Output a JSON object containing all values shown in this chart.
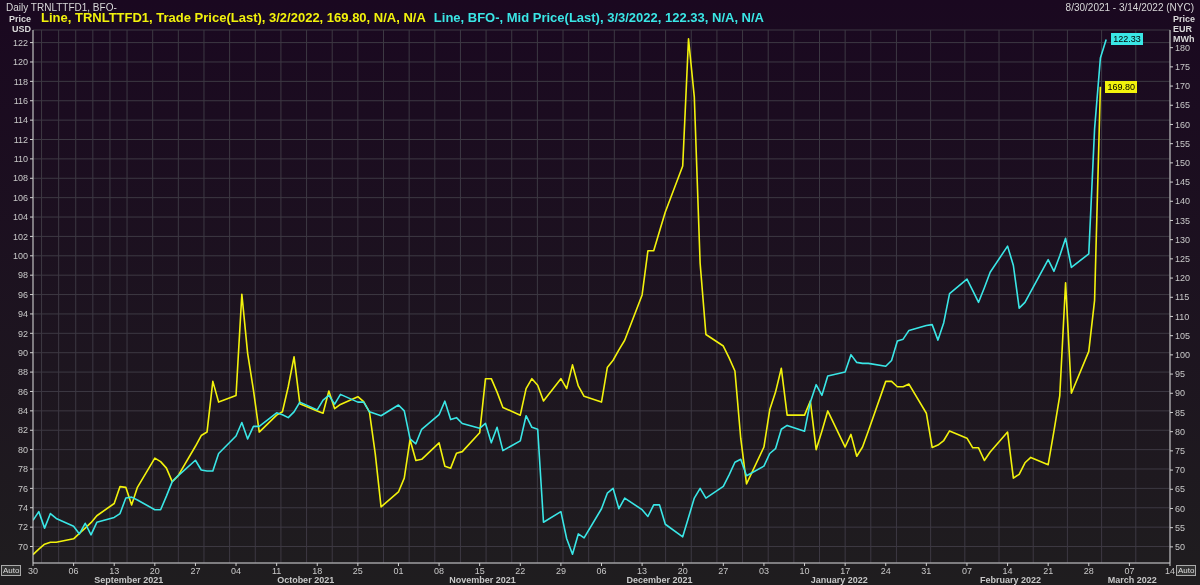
{
  "chart_data": {
    "type": "line",
    "title": "Daily TRNLTTFD1, BFO-",
    "subtitle": "8/30/2021 - 3/14/2022 (NYC)",
    "ylabel": "Price USD",
    "y2label": "Price EUR MWh",
    "x": [
      "2021-08-30",
      "2021-08-31",
      "2021-09-01",
      "2021-09-02",
      "2021-09-03",
      "2021-09-06",
      "2021-09-07",
      "2021-09-08",
      "2021-09-09",
      "2021-09-10",
      "2021-09-13",
      "2021-09-14",
      "2021-09-15",
      "2021-09-16",
      "2021-09-17",
      "2021-09-20",
      "2021-09-21",
      "2021-09-22",
      "2021-09-23",
      "2021-09-24",
      "2021-09-27",
      "2021-09-28",
      "2021-09-29",
      "2021-09-30",
      "2021-10-01",
      "2021-10-04",
      "2021-10-05",
      "2021-10-06",
      "2021-10-07",
      "2021-10-08",
      "2021-10-11",
      "2021-10-12",
      "2021-10-13",
      "2021-10-14",
      "2021-10-15",
      "2021-10-18",
      "2021-10-19",
      "2021-10-20",
      "2021-10-21",
      "2021-10-22",
      "2021-10-25",
      "2021-10-26",
      "2021-10-27",
      "2021-10-28",
      "2021-10-29",
      "2021-11-01",
      "2021-11-02",
      "2021-11-03",
      "2021-11-04",
      "2021-11-05",
      "2021-11-08",
      "2021-11-09",
      "2021-11-10",
      "2021-11-11",
      "2021-11-12",
      "2021-11-15",
      "2021-11-16",
      "2021-11-17",
      "2021-11-18",
      "2021-11-19",
      "2021-11-22",
      "2021-11-23",
      "2021-11-24",
      "2021-11-25",
      "2021-11-26",
      "2021-11-29",
      "2021-11-30",
      "2021-12-01",
      "2021-12-02",
      "2021-12-03",
      "2021-12-06",
      "2021-12-07",
      "2021-12-08",
      "2021-12-09",
      "2021-12-10",
      "2021-12-13",
      "2021-12-14",
      "2021-12-15",
      "2021-12-16",
      "2021-12-17",
      "2021-12-20",
      "2021-12-21",
      "2021-12-22",
      "2021-12-23",
      "2021-12-24",
      "2021-12-27",
      "2021-12-28",
      "2021-12-29",
      "2021-12-30",
      "2021-12-31",
      "2022-01-03",
      "2022-01-04",
      "2022-01-05",
      "2022-01-06",
      "2022-01-07",
      "2022-01-10",
      "2022-01-11",
      "2022-01-12",
      "2022-01-13",
      "2022-01-14",
      "2022-01-17",
      "2022-01-18",
      "2022-01-19",
      "2022-01-20",
      "2022-01-21",
      "2022-01-24",
      "2022-01-25",
      "2022-01-26",
      "2022-01-27",
      "2022-01-28",
      "2022-01-31",
      "2022-02-01",
      "2022-02-02",
      "2022-02-03",
      "2022-02-04",
      "2022-02-07",
      "2022-02-08",
      "2022-02-09",
      "2022-02-10",
      "2022-02-11",
      "2022-02-14",
      "2022-02-15",
      "2022-02-16",
      "2022-02-17",
      "2022-02-18",
      "2022-02-21",
      "2022-02-22",
      "2022-02-23",
      "2022-02-24",
      "2022-02-25",
      "2022-02-28",
      "2022-03-01",
      "2022-03-02",
      "2022-03-03"
    ],
    "series": [
      {
        "name": "Line, TRNLTTFD1, Trade Price(Last), 3/2/2022, 169.80, N/A, N/A",
        "color": "#f2f20c",
        "axis": "y2",
        "values": [
          48.0,
          49.4,
          50.7,
          51.2,
          51.2,
          52.1,
          53.5,
          54.9,
          56.3,
          58.1,
          61.3,
          65.7,
          65.5,
          60.9,
          65.5,
          73.1,
          72.2,
          70.5,
          67.0,
          68.5,
          76.2,
          79.0,
          79.9,
          93.1,
          87.7,
          89.4,
          115.8,
          100.4,
          90.8,
          79.9,
          84.3,
          85.2,
          91.7,
          99.5,
          87.3,
          85.4,
          84.8,
          90.6,
          86.0,
          87.1,
          89.1,
          87.8,
          85.1,
          74.2,
          60.4,
          64.3,
          67.9,
          77.9,
          72.5,
          72.8,
          77.1,
          71.0,
          70.5,
          74.4,
          74.8,
          79.7,
          93.8,
          93.8,
          90.3,
          86.3,
          84.3,
          91.2,
          93.8,
          92.1,
          88.0,
          93.8,
          91.2,
          97.4,
          91.9,
          89.2,
          87.7,
          96.7,
          98.6,
          101.3,
          103.8,
          115.6,
          127.1,
          127.1,
          132.2,
          137.2,
          149.2,
          182.3,
          167.1,
          123.9,
          105.3,
          102.3,
          99.2,
          95.8,
          78.3,
          66.4,
          76.0,
          85.7,
          90.3,
          96.5,
          84.3,
          84.3,
          88.0,
          75.3,
          80.2,
          85.4,
          76.0,
          79.3,
          73.6,
          76.0,
          80.2,
          93.1,
          93.1,
          91.7,
          91.7,
          92.4,
          84.8,
          75.9,
          76.5,
          77.7,
          80.2,
          78.3,
          75.8,
          75.8,
          72.5,
          74.7,
          79.9,
          67.9,
          68.9,
          71.9,
          73.3,
          71.4,
          80.2,
          89.4,
          118.8,
          90.0,
          100.9,
          114.2,
          169.8,
          null
        ],
        "value_labels": [
          null,
          null,
          null,
          null,
          null,
          null,
          null,
          null,
          null,
          null,
          null,
          null,
          null,
          null,
          null,
          null,
          null,
          null,
          null,
          null,
          null,
          null,
          null,
          null,
          null,
          null,
          null,
          null,
          null,
          null,
          null,
          null,
          null,
          null,
          null,
          null,
          null,
          null,
          null,
          null,
          null,
          null,
          null,
          null,
          null,
          null,
          null,
          null,
          null,
          null,
          null,
          null,
          null,
          null,
          null,
          null,
          null,
          null,
          null,
          null,
          null,
          null,
          null,
          null,
          null,
          null,
          null,
          null,
          null,
          null,
          null,
          null,
          null,
          null,
          null,
          null,
          null,
          null,
          null,
          null,
          null,
          null,
          null,
          null,
          null,
          null,
          null,
          null,
          null,
          null,
          null,
          null,
          null,
          null,
          null,
          null,
          null,
          null,
          null,
          null,
          null,
          null,
          null,
          null,
          null,
          null,
          null,
          null,
          null,
          null,
          null,
          null,
          null,
          null,
          null,
          null,
          null,
          null,
          null,
          null,
          null,
          null,
          null,
          null,
          null,
          null,
          null,
          null,
          null,
          null,
          null,
          null,
          "169.80",
          null
        ]
      },
      {
        "name": "Line, BFO-, Mid Price(Last), 3/3/2022, 122.33, N/A, N/A",
        "color": "#3ae6e6",
        "axis": "y",
        "values": [
          72.7,
          73.6,
          71.9,
          73.4,
          72.9,
          72.1,
          71.3,
          72.4,
          71.2,
          72.5,
          73.0,
          73.4,
          75.0,
          75.1,
          74.8,
          73.8,
          73.8,
          75.2,
          76.7,
          77.3,
          78.9,
          77.9,
          77.8,
          77.8,
          79.6,
          81.4,
          82.8,
          81.1,
          82.4,
          82.4,
          83.8,
          83.6,
          83.3,
          83.9,
          84.9,
          84.1,
          85.1,
          85.6,
          84.7,
          85.7,
          84.9,
          84.9,
          83.9,
          83.7,
          83.5,
          84.6,
          84.0,
          81.1,
          80.6,
          82.1,
          83.6,
          85.0,
          83.1,
          83.3,
          82.7,
          82.2,
          82.7,
          80.7,
          82.3,
          79.9,
          80.9,
          83.5,
          82.3,
          82.1,
          72.5,
          73.6,
          70.8,
          69.2,
          71.3,
          70.9,
          73.9,
          75.5,
          76.0,
          73.9,
          75.0,
          73.8,
          73.1,
          74.3,
          74.3,
          72.3,
          71.0,
          73.0,
          75.0,
          76.0,
          75.0,
          76.2,
          77.4,
          78.7,
          79.0,
          77.3,
          78.3,
          79.6,
          80.1,
          82.1,
          82.5,
          81.9,
          84.9,
          86.7,
          85.6,
          87.6,
          88.0,
          89.8,
          89.0,
          88.9,
          88.9,
          88.6,
          89.2,
          91.2,
          91.4,
          92.3,
          92.8,
          92.9,
          91.3,
          93.1,
          96.1,
          97.6,
          96.4,
          95.2,
          96.7,
          98.3,
          101.0,
          99.0,
          94.6,
          95.2,
          96.3,
          99.6,
          98.4,
          100.0,
          101.8,
          98.8,
          100.2,
          113.1,
          120.4,
          122.33
        ],
        "value_labels": [
          null,
          null,
          null,
          null,
          null,
          null,
          null,
          null,
          null,
          null,
          null,
          null,
          null,
          null,
          null,
          null,
          null,
          null,
          null,
          null,
          null,
          null,
          null,
          null,
          null,
          null,
          null,
          null,
          null,
          null,
          null,
          null,
          null,
          null,
          null,
          null,
          null,
          null,
          null,
          null,
          null,
          null,
          null,
          null,
          null,
          null,
          null,
          null,
          null,
          null,
          null,
          null,
          null,
          null,
          null,
          null,
          null,
          null,
          null,
          null,
          null,
          null,
          null,
          null,
          null,
          null,
          null,
          null,
          null,
          null,
          null,
          null,
          null,
          null,
          null,
          null,
          null,
          null,
          null,
          null,
          null,
          null,
          null,
          null,
          null,
          null,
          null,
          null,
          null,
          null,
          null,
          null,
          null,
          null,
          null,
          null,
          null,
          null,
          null,
          null,
          null,
          null,
          null,
          null,
          null,
          null,
          null,
          null,
          null,
          null,
          null,
          null,
          null,
          null,
          null,
          null,
          null,
          null,
          null,
          null,
          null,
          null,
          null,
          null,
          null,
          null,
          null,
          null,
          null,
          null,
          null,
          null,
          null,
          "122.33"
        ]
      }
    ],
    "xlim": [
      "2021-08-30",
      "2022-03-14"
    ],
    "xticks": [
      {
        "value": "2021-08-30",
        "label": "30"
      },
      {
        "value": "2021-09-06",
        "label": "06"
      },
      {
        "value": "2021-09-13",
        "label": "13"
      },
      {
        "value": "2021-09-20",
        "label": "20"
      },
      {
        "value": "2021-09-27",
        "label": "27"
      },
      {
        "value": "2021-10-04",
        "label": "04"
      },
      {
        "value": "2021-10-11",
        "label": "11"
      },
      {
        "value": "2021-10-18",
        "label": "18"
      },
      {
        "value": "2021-10-25",
        "label": "25"
      },
      {
        "value": "2021-11-01",
        "label": "01"
      },
      {
        "value": "2021-11-08",
        "label": "08"
      },
      {
        "value": "2021-11-15",
        "label": "15"
      },
      {
        "value": "2021-11-22",
        "label": "22"
      },
      {
        "value": "2021-11-29",
        "label": "29"
      },
      {
        "value": "2021-12-06",
        "label": "06"
      },
      {
        "value": "2021-12-13",
        "label": "13"
      },
      {
        "value": "2021-12-20",
        "label": "20"
      },
      {
        "value": "2021-12-27",
        "label": "27"
      },
      {
        "value": "2022-01-03",
        "label": "03"
      },
      {
        "value": "2022-01-10",
        "label": "10"
      },
      {
        "value": "2022-01-17",
        "label": "17"
      },
      {
        "value": "2022-01-24",
        "label": "24"
      },
      {
        "value": "2022-01-31",
        "label": "31"
      },
      {
        "value": "2022-02-07",
        "label": "07"
      },
      {
        "value": "2022-02-14",
        "label": "14"
      },
      {
        "value": "2022-02-21",
        "label": "21"
      },
      {
        "value": "2022-02-28",
        "label": "28"
      },
      {
        "value": "2022-03-07",
        "label": "07"
      },
      {
        "value": "2022-03-14",
        "label": "14"
      }
    ],
    "ylim": [
      68.3,
      123.3
    ],
    "yticks": [
      70,
      72,
      74,
      76,
      78,
      80,
      82,
      84,
      86,
      88,
      90,
      92,
      94,
      96,
      98,
      100,
      102,
      104,
      106,
      108,
      110,
      112,
      114,
      116,
      118,
      120,
      122
    ],
    "y2lim": [
      45.8,
      184.6
    ],
    "y2ticks": [
      50,
      55,
      60,
      65,
      70,
      75,
      80,
      85,
      90,
      95,
      100,
      105,
      110,
      115,
      120,
      125,
      130,
      135,
      140,
      145,
      150,
      155,
      160,
      165,
      170,
      175,
      180
    ],
    "grid": true,
    "legend": "top left",
    "line_style": "solid",
    "annotations": [
      "September 2021",
      "October 2021",
      "November 2021",
      "December 2021",
      "January 2022",
      "February 2022",
      "March 2022",
      "Auto",
      "Auto"
    ]
  }
}
